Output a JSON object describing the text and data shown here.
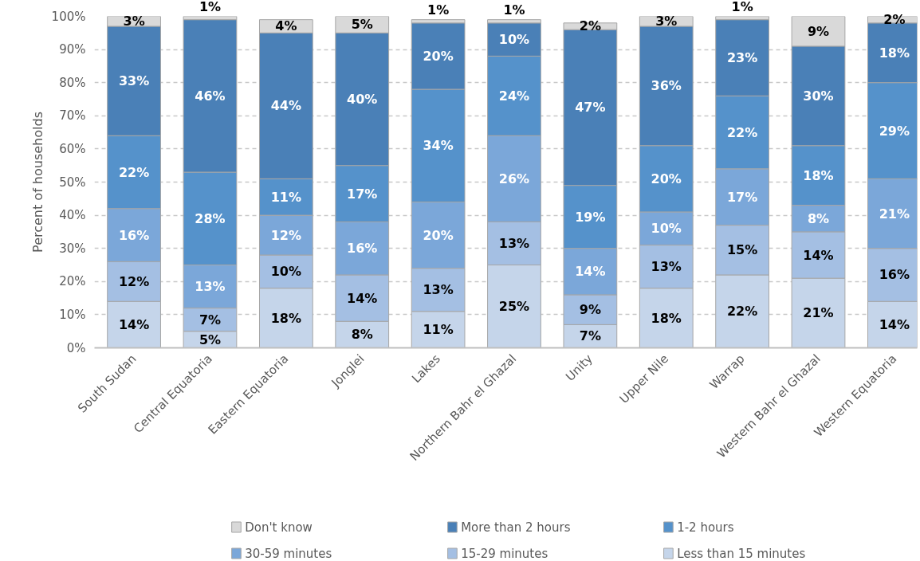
{
  "chart_data": {
    "type": "bar",
    "stacked": true,
    "ylabel": "Percent of households",
    "categories": [
      "South Sudan",
      "Central Equatoria",
      "Eastern Equatoria",
      "Jonglei",
      "Lakes",
      "Northern Bahr el Ghazal",
      "Unity",
      "Upper Nile",
      "Warrap",
      "Western Bahr el Ghazal",
      "Western Equatoria"
    ],
    "series": [
      {
        "name": "Less than 15 minutes",
        "color": "#c5d5ea",
        "values": [
          14,
          5,
          18,
          8,
          11,
          25,
          7,
          18,
          22,
          21,
          14
        ],
        "value_labels": [
          "14%",
          "5%",
          "18%",
          "8%",
          "11%",
          "25%",
          "7%",
          "18%",
          "22%",
          "21%",
          "14%"
        ]
      },
      {
        "name": "15-29 minutes",
        "color": "#a4bfe3",
        "values": [
          12,
          7,
          10,
          14,
          13,
          13,
          9,
          13,
          15,
          14,
          16
        ],
        "value_labels": [
          "12%",
          "7%",
          "10%",
          "14%",
          "13%",
          "13%",
          "9%",
          "13%",
          "15%",
          "14%",
          "16%"
        ]
      },
      {
        "name": "30-59 minutes",
        "color": "#7ba7d9",
        "values": [
          16,
          13,
          12,
          16,
          20,
          26,
          14,
          10,
          17,
          8,
          21
        ],
        "value_labels": [
          "16%",
          "13%",
          "12%",
          "16%",
          "20%",
          "26%",
          "14%",
          "10%",
          "17%",
          "8%",
          "21%"
        ]
      },
      {
        "name": "1-2 hours",
        "color": "#5592cb",
        "values": [
          22,
          28,
          11,
          17,
          34,
          24,
          19,
          20,
          22,
          18,
          29
        ],
        "value_labels": [
          "22%",
          "28%",
          "11%",
          "17%",
          "34%",
          "24%",
          "19%",
          "20%",
          "22%",
          "18%",
          "29%"
        ]
      },
      {
        "name": "More than 2 hours",
        "color": "#4a80b7",
        "values": [
          33,
          46,
          44,
          40,
          20,
          10,
          47,
          36,
          23,
          30,
          18
        ],
        "value_labels": [
          "33%",
          "46%",
          "44%",
          "40%",
          "20%",
          "10%",
          "47%",
          "36%",
          "23%",
          "30%",
          "18%"
        ]
      },
      {
        "name": "Don't know",
        "color": "#d9d9d9",
        "values": [
          3,
          1,
          4,
          5,
          1,
          1,
          2,
          3,
          1,
          9,
          2
        ],
        "value_labels": [
          "3%",
          "1%",
          "4%",
          "5%",
          "1%",
          "1%",
          "2%",
          "3%",
          "1%",
          "9%",
          "2%"
        ]
      }
    ],
    "ylim": [
      0,
      100
    ],
    "yticks": [
      {
        "value": 0,
        "label": "0%"
      },
      {
        "value": 10,
        "label": "10%"
      },
      {
        "value": 20,
        "label": "20%"
      },
      {
        "value": 30,
        "label": "30%"
      },
      {
        "value": 40,
        "label": "40%"
      },
      {
        "value": 50,
        "label": "50%"
      },
      {
        "value": 60,
        "label": "60%"
      },
      {
        "value": 70,
        "label": "70%"
      },
      {
        "value": 80,
        "label": "80%"
      },
      {
        "value": 90,
        "label": "90%"
      },
      {
        "value": 100,
        "label": "100%"
      }
    ],
    "grid": "y",
    "legend": "bottom"
  }
}
